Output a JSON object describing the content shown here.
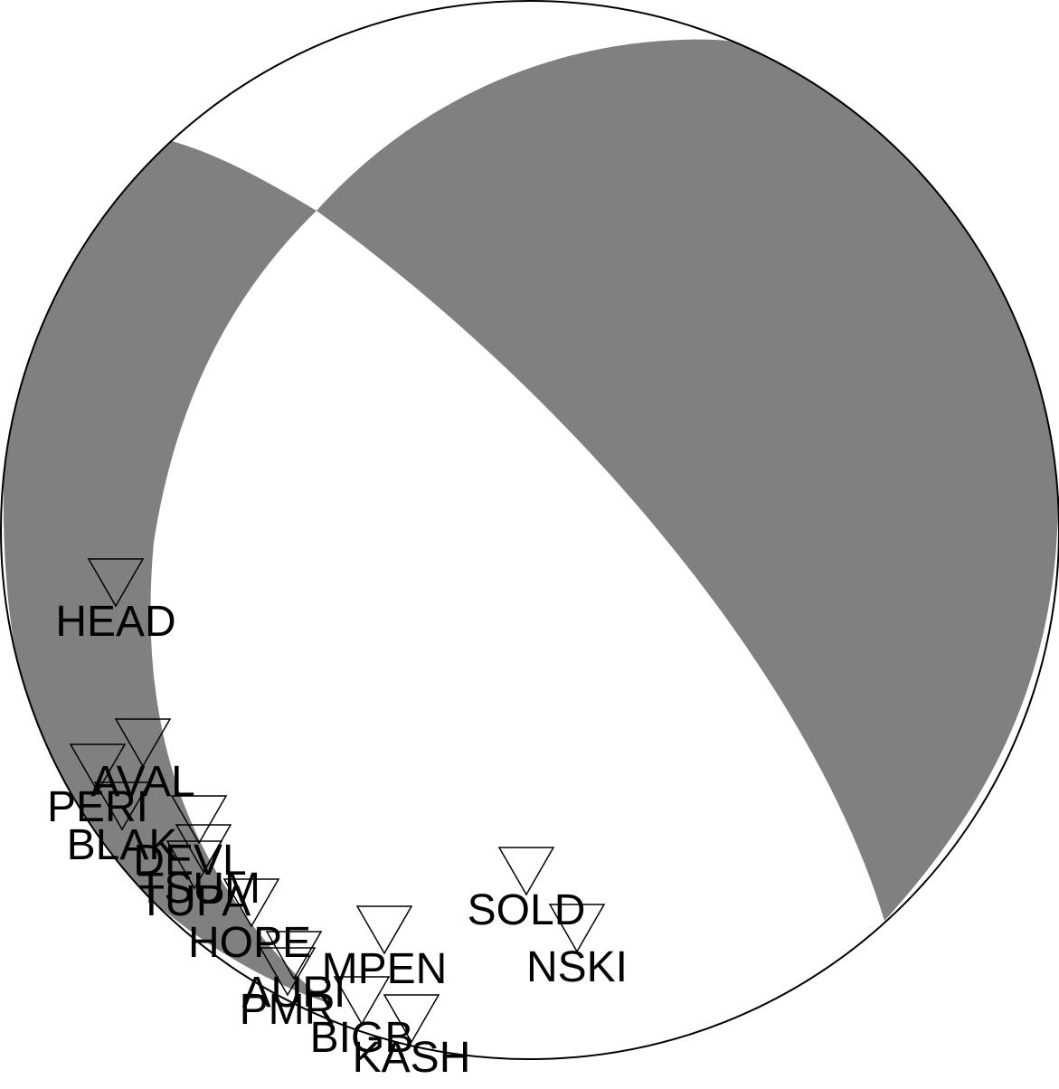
{
  "diagram": {
    "type": "focal-mechanism-beachball",
    "colors": {
      "compressional": "#808080",
      "dilatational": "#ffffff",
      "outline": "#000000",
      "station_marker": "#ffffff"
    },
    "stations": [
      {
        "code": "HEAD"
      },
      {
        "code": "AVAL"
      },
      {
        "code": "PERI"
      },
      {
        "code": "BLAK"
      },
      {
        "code": "DEVL"
      },
      {
        "code": "TSUM"
      },
      {
        "code": "TUPA"
      },
      {
        "code": "HOPE"
      },
      {
        "code": "MPEN"
      },
      {
        "code": "SOLD"
      },
      {
        "code": "NSKI"
      },
      {
        "code": "AURI"
      },
      {
        "code": "PMR"
      },
      {
        "code": "BIGB"
      },
      {
        "code": "KASH"
      }
    ]
  }
}
